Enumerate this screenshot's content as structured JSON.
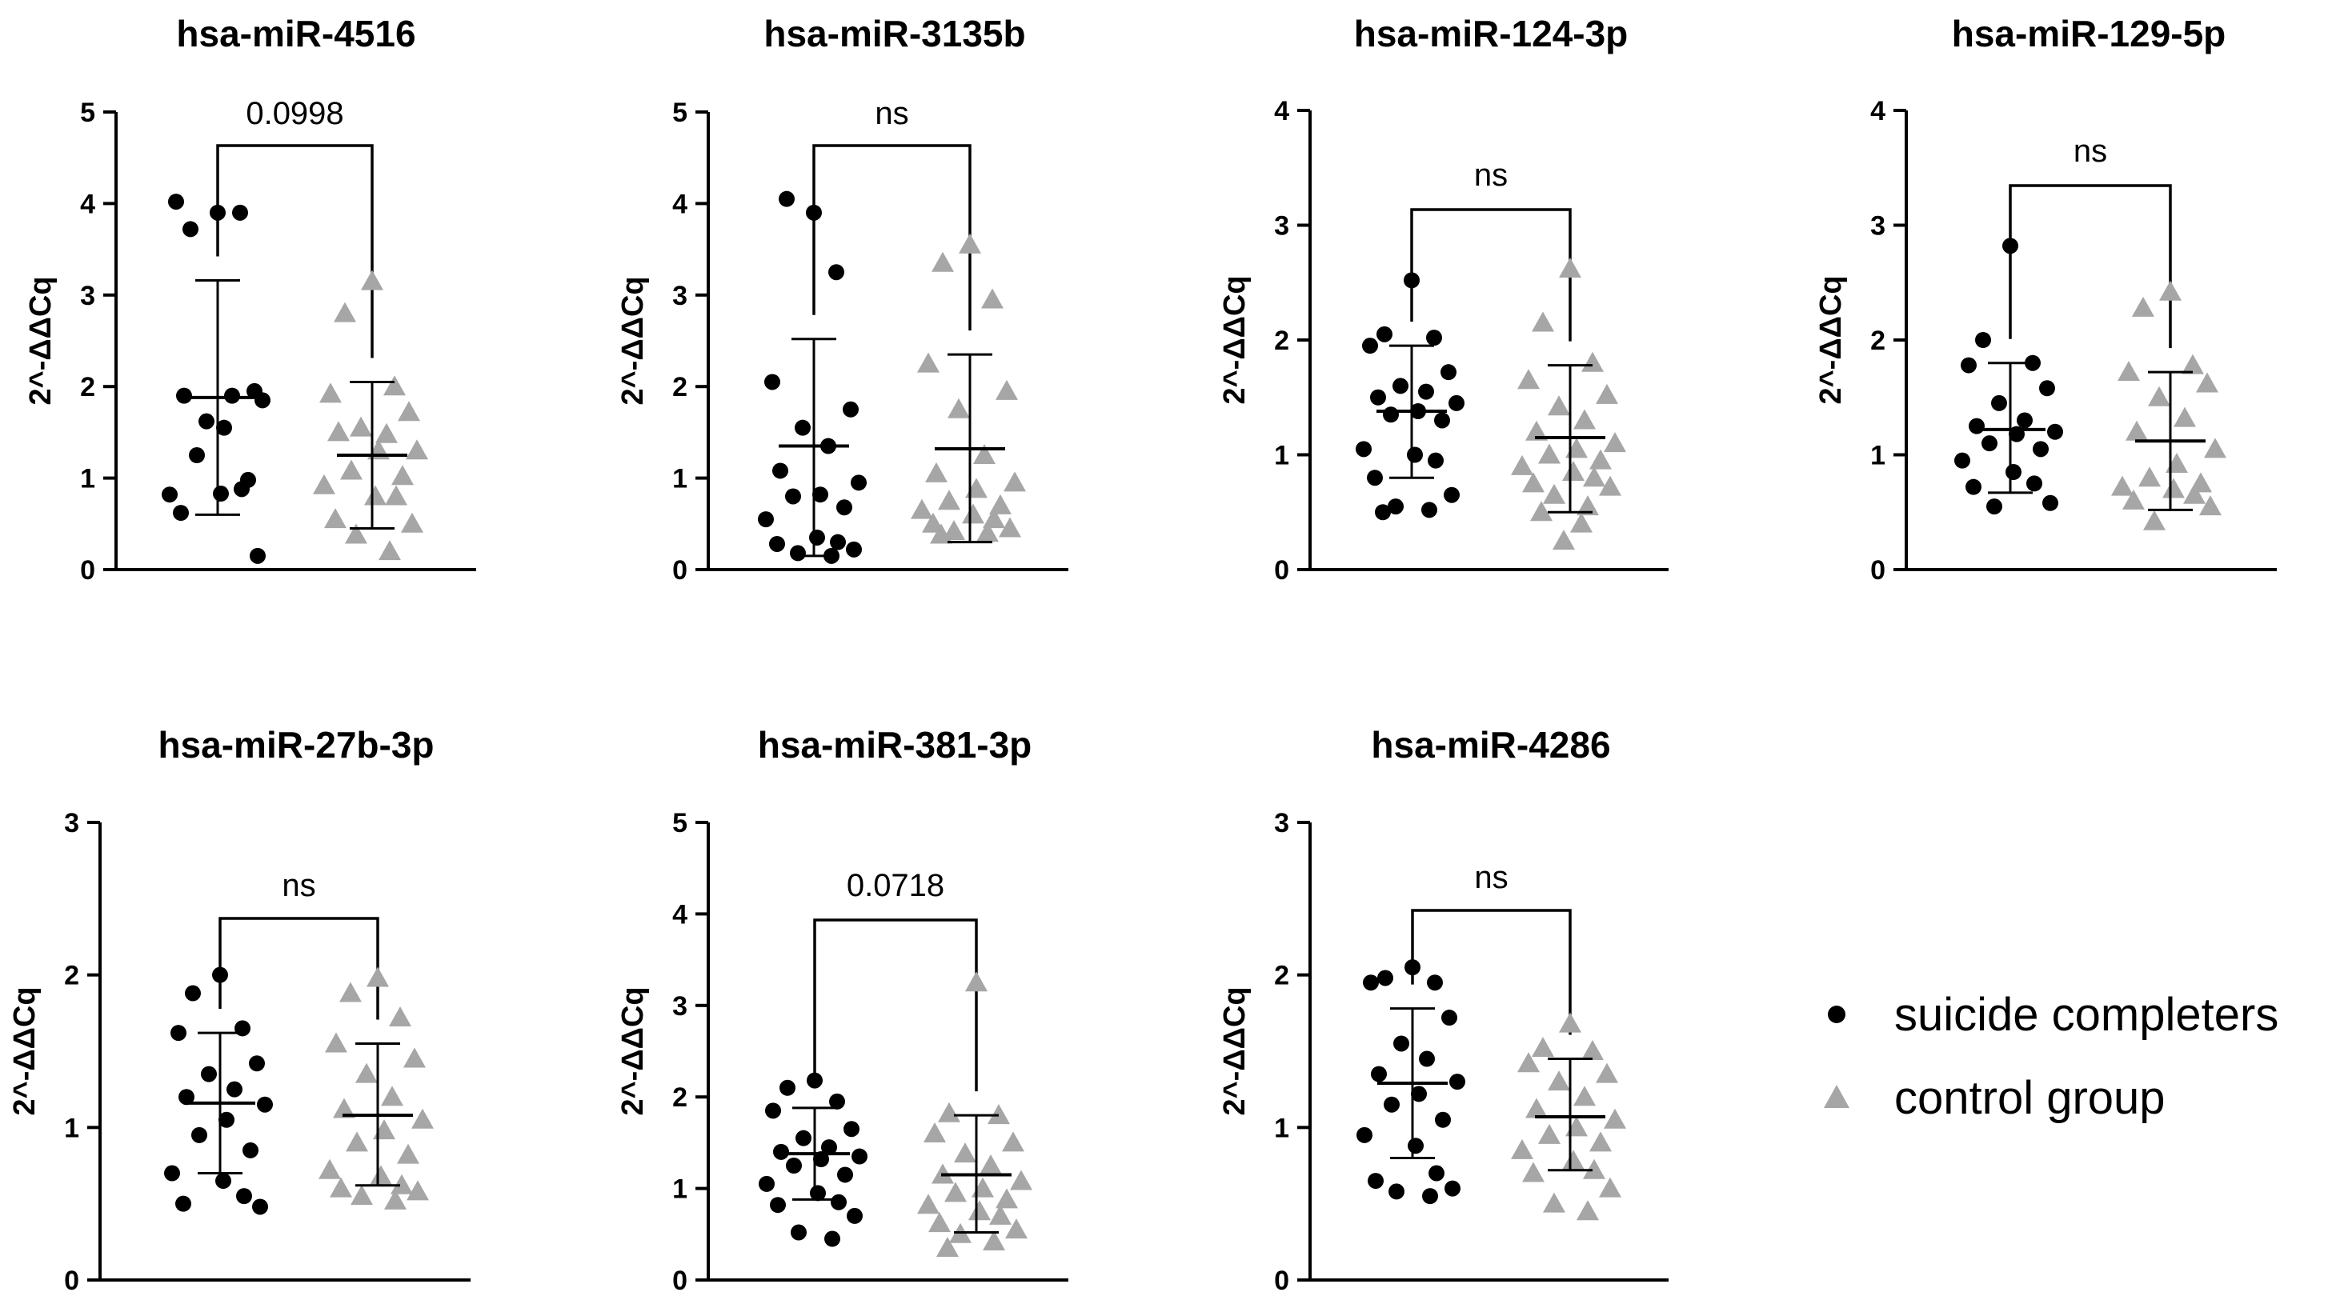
{
  "chart_data": [
    {
      "type": "scatter",
      "title": "hsa-miR-4516",
      "ylabel": "2^-ΔΔCq",
      "ylim": [
        0,
        5
      ],
      "yticks": [
        0,
        1,
        2,
        3,
        4,
        5
      ],
      "significance": "0.0998",
      "series": [
        {
          "name": "suicide completers",
          "marker": "circle",
          "color": "#000000",
          "mean": 1.88,
          "sd_low": 0.6,
          "sd_high": 3.16,
          "values": [
            3.9,
            3.72,
            3.9,
            4.02,
            1.95,
            1.62,
            1.9,
            1.9,
            1.85,
            1.55,
            1.25,
            0.98,
            0.82,
            0.83,
            0.88,
            0.62,
            0.15
          ]
        },
        {
          "name": "control group",
          "marker": "triangle",
          "color": "#a6a6a6",
          "mean": 1.25,
          "sd_low": 0.45,
          "sd_high": 2.05,
          "values": [
            3.15,
            2.8,
            2.0,
            1.92,
            1.72,
            1.55,
            1.48,
            1.5,
            1.3,
            1.3,
            1.08,
            1.02,
            0.92,
            0.8,
            0.8,
            0.55,
            0.5,
            0.38,
            0.2
          ]
        }
      ]
    },
    {
      "type": "scatter",
      "title": "hsa-miR-3135b",
      "ylabel": "2^-ΔΔCq",
      "ylim": [
        0,
        5
      ],
      "yticks": [
        0,
        1,
        2,
        3,
        4,
        5
      ],
      "significance": "ns",
      "series": [
        {
          "name": "suicide completers",
          "marker": "circle",
          "color": "#000000",
          "mean": 1.35,
          "sd_low": 0.15,
          "sd_high": 2.52,
          "values": [
            3.9,
            4.05,
            3.25,
            2.05,
            1.75,
            1.55,
            1.35,
            1.08,
            0.95,
            0.82,
            0.8,
            0.68,
            0.55,
            0.35,
            0.3,
            0.28,
            0.22,
            0.18,
            0.15
          ]
        },
        {
          "name": "control group",
          "marker": "triangle",
          "color": "#a6a6a6",
          "mean": 1.32,
          "sd_low": 0.3,
          "sd_high": 2.35,
          "values": [
            3.55,
            3.35,
            2.95,
            2.25,
            1.95,
            1.75,
            1.25,
            1.05,
            0.95,
            0.88,
            0.75,
            0.7,
            0.65,
            0.6,
            0.55,
            0.5,
            0.45,
            0.42,
            0.4,
            0.38
          ]
        }
      ]
    },
    {
      "type": "scatter",
      "title": "hsa-miR-124-3p",
      "ylabel": "2^-ΔΔCq",
      "ylim": [
        0,
        4
      ],
      "yticks": [
        0,
        1,
        2,
        3,
        4
      ],
      "significance": "ns",
      "series": [
        {
          "name": "suicide completers",
          "marker": "circle",
          "color": "#000000",
          "mean": 1.38,
          "sd_low": 0.8,
          "sd_high": 1.95,
          "values": [
            2.52,
            2.05,
            2.02,
            1.95,
            1.72,
            1.6,
            1.55,
            1.5,
            1.45,
            1.38,
            1.35,
            1.3,
            1.05,
            1.0,
            0.95,
            0.8,
            0.65,
            0.55,
            0.52,
            0.5
          ]
        },
        {
          "name": "control group",
          "marker": "triangle",
          "color": "#a6a6a6",
          "mean": 1.15,
          "sd_low": 0.5,
          "sd_high": 1.78,
          "values": [
            2.62,
            2.15,
            1.8,
            1.65,
            1.52,
            1.42,
            1.3,
            1.2,
            1.1,
            1.05,
            1.0,
            0.95,
            0.9,
            0.85,
            0.8,
            0.75,
            0.72,
            0.65,
            0.55,
            0.5,
            0.4,
            0.25
          ]
        }
      ]
    },
    {
      "type": "scatter",
      "title": "hsa-miR-129-5p",
      "ylabel": "2^-ΔΔCq",
      "ylim": [
        0,
        4
      ],
      "yticks": [
        0,
        1,
        2,
        3,
        4
      ],
      "significance": "ns",
      "series": [
        {
          "name": "suicide completers",
          "marker": "circle",
          "color": "#000000",
          "mean": 1.22,
          "sd_low": 0.67,
          "sd_high": 1.8,
          "values": [
            2.82,
            2.0,
            1.8,
            1.78,
            1.58,
            1.45,
            1.3,
            1.25,
            1.2,
            1.18,
            1.1,
            1.05,
            0.95,
            0.85,
            0.75,
            0.72,
            0.58,
            0.55
          ]
        },
        {
          "name": "control group",
          "marker": "triangle",
          "color": "#a6a6a6",
          "mean": 1.12,
          "sd_low": 0.52,
          "sd_high": 1.72,
          "values": [
            2.42,
            2.28,
            1.78,
            1.72,
            1.62,
            1.5,
            1.32,
            1.2,
            1.05,
            0.92,
            0.8,
            0.75,
            0.72,
            0.7,
            0.65,
            0.6,
            0.55,
            0.42
          ]
        }
      ]
    },
    {
      "type": "scatter",
      "title": "hsa-miR-27b-3p",
      "ylabel": "2^-ΔΔCq",
      "ylim": [
        0,
        3
      ],
      "yticks": [
        0,
        1,
        2,
        3
      ],
      "significance": "ns",
      "series": [
        {
          "name": "suicide completers",
          "marker": "circle",
          "color": "#000000",
          "mean": 1.16,
          "sd_low": 0.7,
          "sd_high": 1.62,
          "values": [
            2.0,
            1.88,
            1.65,
            1.62,
            1.42,
            1.35,
            1.25,
            1.2,
            1.15,
            1.05,
            0.95,
            0.85,
            0.7,
            0.65,
            0.55,
            0.5,
            0.48
          ]
        },
        {
          "name": "control group",
          "marker": "triangle",
          "color": "#a6a6a6",
          "mean": 1.08,
          "sd_low": 0.62,
          "sd_high": 1.55,
          "values": [
            1.98,
            1.88,
            1.72,
            1.55,
            1.45,
            1.35,
            1.2,
            1.12,
            1.05,
            0.98,
            0.9,
            0.82,
            0.72,
            0.68,
            0.62,
            0.6,
            0.58,
            0.55,
            0.52
          ]
        }
      ]
    },
    {
      "type": "scatter",
      "title": "hsa-miR-381-3p",
      "ylabel": "2^-ΔΔCq",
      "ylim": [
        0,
        5
      ],
      "yticks": [
        0,
        1,
        2,
        3,
        4,
        5
      ],
      "significance": "0.0718",
      "series": [
        {
          "name": "suicide completers",
          "marker": "circle",
          "color": "#000000",
          "mean": 1.38,
          "sd_low": 0.88,
          "sd_high": 1.88,
          "values": [
            2.18,
            2.1,
            1.95,
            1.85,
            1.65,
            1.55,
            1.45,
            1.4,
            1.35,
            1.32,
            1.25,
            1.15,
            1.05,
            0.95,
            0.85,
            0.82,
            0.7,
            0.52,
            0.45
          ]
        },
        {
          "name": "control group",
          "marker": "triangle",
          "color": "#a6a6a6",
          "mean": 1.15,
          "sd_low": 0.52,
          "sd_high": 1.8,
          "values": [
            3.25,
            1.82,
            1.8,
            1.6,
            1.5,
            1.38,
            1.25,
            1.15,
            1.08,
            1.0,
            0.95,
            0.88,
            0.82,
            0.75,
            0.7,
            0.62,
            0.55,
            0.5,
            0.42,
            0.35
          ]
        }
      ]
    },
    {
      "type": "scatter",
      "title": "hsa-miR-4286",
      "ylabel": "2^-ΔΔCq",
      "ylim": [
        0,
        3
      ],
      "yticks": [
        0,
        1,
        2,
        3
      ],
      "significance": "ns",
      "series": [
        {
          "name": "suicide completers",
          "marker": "circle",
          "color": "#000000",
          "mean": 1.29,
          "sd_low": 0.8,
          "sd_high": 1.78,
          "values": [
            2.05,
            1.98,
            1.95,
            1.95,
            1.72,
            1.55,
            1.45,
            1.35,
            1.3,
            1.22,
            1.15,
            1.05,
            0.95,
            0.88,
            0.7,
            0.65,
            0.6,
            0.58,
            0.55
          ]
        },
        {
          "name": "control group",
          "marker": "triangle",
          "color": "#a6a6a6",
          "mean": 1.07,
          "sd_low": 0.72,
          "sd_high": 1.45,
          "values": [
            1.68,
            1.52,
            1.5,
            1.42,
            1.35,
            1.3,
            1.2,
            1.12,
            1.05,
            1.0,
            0.95,
            0.9,
            0.85,
            0.78,
            0.72,
            0.7,
            0.6,
            0.5,
            0.45
          ]
        }
      ]
    }
  ],
  "legend": {
    "items": [
      {
        "label": "suicide completers",
        "marker": "circle",
        "color": "#000000"
      },
      {
        "label": "control group",
        "marker": "triangle",
        "color": "#a6a6a6"
      }
    ]
  }
}
